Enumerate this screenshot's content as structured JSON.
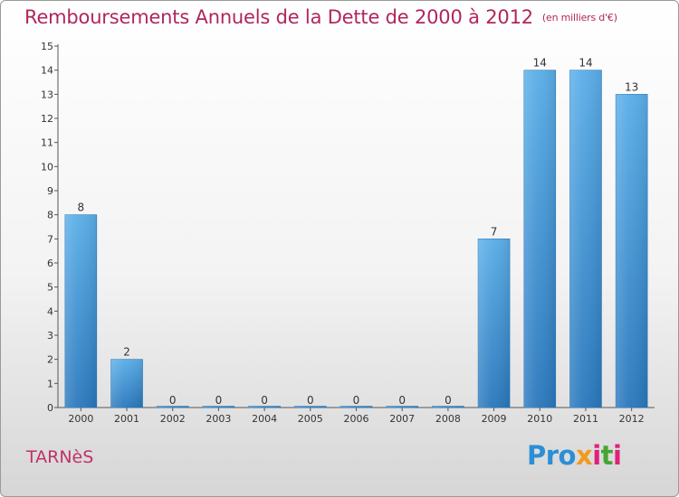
{
  "chart_data": {
    "type": "bar",
    "title": "Remboursements Annuels de la Dette de 2000 à 2012",
    "subtitle": "(en milliers d'€)",
    "categories": [
      "2000",
      "2001",
      "2002",
      "2003",
      "2004",
      "2005",
      "2006",
      "2007",
      "2008",
      "2009",
      "2010",
      "2011",
      "2012"
    ],
    "values": [
      8,
      2,
      0,
      0,
      0,
      0,
      0,
      0,
      0,
      7,
      14,
      14,
      13
    ],
    "value_labels": [
      "8",
      "2",
      "0",
      "0",
      "0",
      "0",
      "0",
      "0",
      "0",
      "7",
      "14",
      "14",
      "13"
    ],
    "yticks": [
      "0",
      "1",
      "2",
      "3",
      "4",
      "5",
      "6",
      "7",
      "8",
      "9",
      "10",
      "11",
      "12",
      "13",
      "14",
      "15"
    ],
    "ylim": [
      0,
      15
    ],
    "grid": false,
    "bar_color": "#4a9fe0",
    "bar_color_dark": "#2a78bd"
  },
  "footer": {
    "city": "TARNèS",
    "logo": {
      "p1": "Pro",
      "p2": "x",
      "p3": "i",
      "p4": "t",
      "p5": "i"
    }
  }
}
